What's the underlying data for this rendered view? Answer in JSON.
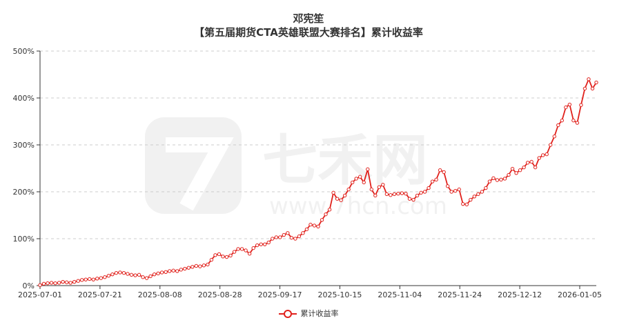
{
  "chart_data": {
    "type": "line",
    "title": "邓宪笙",
    "subtitle": "【第五届期货CTA英雄联盟大赛排名】累计收益率",
    "xlabel": "",
    "ylabel": "",
    "ylim": [
      0,
      500
    ],
    "y_ticks": [
      "0%",
      "100%",
      "200%",
      "300%",
      "400%",
      "500%"
    ],
    "x_ticks": [
      "2025-07-01",
      "2025-07-21",
      "2025-08-08",
      "2025-08-28",
      "2025-09-17",
      "2025-10-15",
      "2025-11-04",
      "2025-11-24",
      "2025-12-12",
      "2026-01-05"
    ],
    "grid": true,
    "legend_position": "bottom",
    "series": [
      {
        "name": "累计收益率",
        "color": "#e0201b",
        "values": [
          1,
          4,
          5,
          6,
          5,
          6,
          8,
          7,
          6,
          8,
          10,
          12,
          13,
          14,
          13,
          15,
          16,
          18,
          21,
          24,
          27,
          28,
          27,
          25,
          23,
          22,
          23,
          18,
          16,
          20,
          24,
          26,
          28,
          29,
          31,
          32,
          31,
          34,
          36,
          38,
          40,
          42,
          41,
          43,
          45,
          55,
          65,
          67,
          62,
          61,
          64,
          72,
          78,
          78,
          75,
          68,
          80,
          86,
          88,
          88,
          92,
          100,
          103,
          103,
          108,
          112,
          102,
          100,
          105,
          112,
          120,
          130,
          128,
          126,
          140,
          152,
          162,
          198,
          185,
          182,
          192,
          205,
          220,
          228,
          232,
          220,
          248,
          205,
          192,
          210,
          215,
          195,
          193,
          195,
          196,
          197,
          196,
          185,
          183,
          192,
          198,
          200,
          208,
          222,
          226,
          246,
          242,
          212,
          200,
          202,
          205,
          174,
          173,
          183,
          190,
          195,
          200,
          208,
          222,
          229,
          225,
          226,
          228,
          236,
          249,
          240,
          246,
          252,
          262,
          264,
          252,
          272,
          278,
          280,
          300,
          318,
          342,
          352,
          380,
          386,
          352,
          347,
          385,
          420,
          440,
          420,
          433
        ]
      }
    ],
    "watermark": "七禾网 www.7hcn.com"
  }
}
